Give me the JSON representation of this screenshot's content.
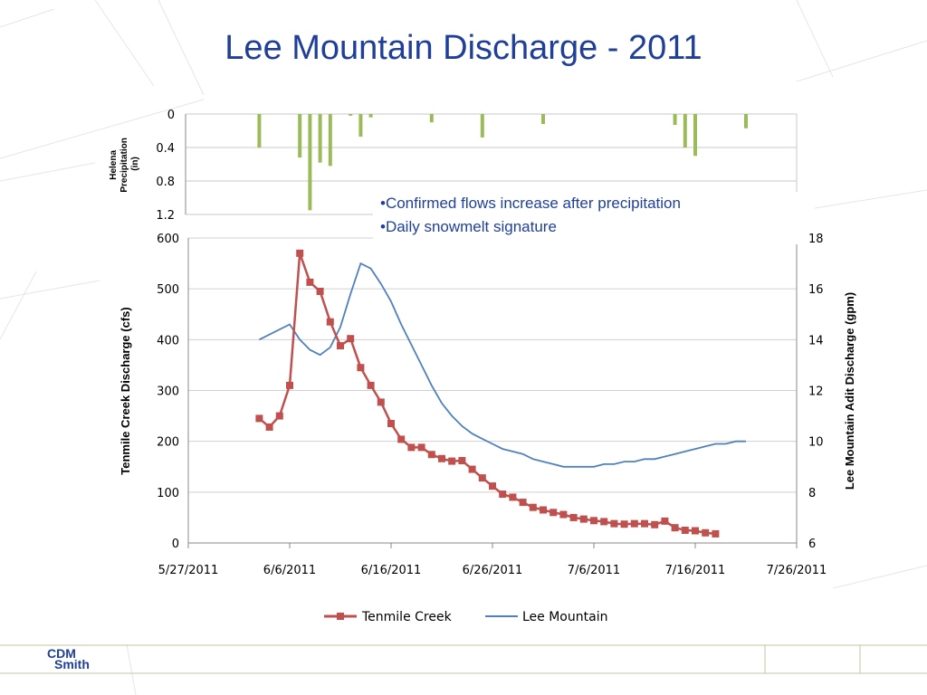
{
  "slide": {
    "title": "Lee Mountain Discharge - 2011",
    "bullets": [
      "•Confirmed flows increase after precipitation",
      "•Daily snowmelt signature"
    ],
    "logo": [
      "CDM",
      "Smith"
    ],
    "colors": {
      "title": "#1f3f99",
      "tenmile": "#c0504d",
      "lee": "#4f81bd",
      "precip": "#9bbb59",
      "footer_line": "#c5c5a0"
    }
  },
  "chart_data": [
    {
      "type": "bar",
      "ylabel": "Helena Precipitation (in)",
      "y_ticks": [
        "0",
        "0.4",
        "0.8",
        "1.2"
      ],
      "ylim": [
        0,
        1.2
      ],
      "y_inverted": true,
      "x_date_range": [
        "5/27/2011",
        "7/26/2011"
      ],
      "series": [
        {
          "values": [
            {
              "x": "6/3/2011",
              "y": 0.4
            },
            {
              "x": "6/7/2011",
              "y": 0.52
            },
            {
              "x": "6/8/2011",
              "y": 1.15
            },
            {
              "x": "6/9/2011",
              "y": 0.58
            },
            {
              "x": "6/10/2011",
              "y": 0.62
            },
            {
              "x": "6/12/2011",
              "y": 0.02
            },
            {
              "x": "6/13/2011",
              "y": 0.27
            },
            {
              "x": "6/14/2011",
              "y": 0.04
            },
            {
              "x": "6/20/2011",
              "y": 0.1
            },
            {
              "x": "6/25/2011",
              "y": 0.28
            },
            {
              "x": "7/1/2011",
              "y": 0.12
            },
            {
              "x": "7/14/2011",
              "y": 0.13
            },
            {
              "x": "7/15/2011",
              "y": 0.4
            },
            {
              "x": "7/16/2011",
              "y": 0.5
            },
            {
              "x": "7/21/2011",
              "y": 0.17
            }
          ]
        }
      ]
    },
    {
      "type": "line",
      "xlabel": "",
      "ylabel": "Tenmile Creek Discharge (cfs)",
      "y2label": "Lee Mountain Adit Discharge (gpm)",
      "x_ticks": [
        "5/27/2011",
        "6/6/2011",
        "6/16/2011",
        "6/26/2011",
        "7/6/2011",
        "7/16/2011",
        "7/26/2011"
      ],
      "y_ticks": [
        "0",
        "100",
        "200",
        "300",
        "400",
        "500",
        "600"
      ],
      "y2_ticks": [
        "6",
        "8",
        "10",
        "12",
        "14",
        "16",
        "18"
      ],
      "ylim": [
        0,
        600
      ],
      "y2lim": [
        6,
        18
      ],
      "grid": true,
      "legend": "bottom",
      "series": [
        {
          "name": "Tenmile Creek",
          "axis": "left",
          "marker": "square",
          "values": [
            {
              "x": "6/3/2011",
              "y": 245
            },
            {
              "x": "6/4/2011",
              "y": 228
            },
            {
              "x": "6/5/2011",
              "y": 250
            },
            {
              "x": "6/6/2011",
              "y": 310
            },
            {
              "x": "6/7/2011",
              "y": 570
            },
            {
              "x": "6/8/2011",
              "y": 513
            },
            {
              "x": "6/9/2011",
              "y": 495
            },
            {
              "x": "6/10/2011",
              "y": 435
            },
            {
              "x": "6/11/2011",
              "y": 388
            },
            {
              "x": "6/12/2011",
              "y": 402
            },
            {
              "x": "6/13/2011",
              "y": 345
            },
            {
              "x": "6/14/2011",
              "y": 310
            },
            {
              "x": "6/15/2011",
              "y": 277
            },
            {
              "x": "6/16/2011",
              "y": 235
            },
            {
              "x": "6/17/2011",
              "y": 204
            },
            {
              "x": "6/18/2011",
              "y": 188
            },
            {
              "x": "6/19/2011",
              "y": 188
            },
            {
              "x": "6/20/2011",
              "y": 174
            },
            {
              "x": "6/21/2011",
              "y": 166
            },
            {
              "x": "6/22/2011",
              "y": 161
            },
            {
              "x": "6/23/2011",
              "y": 162
            },
            {
              "x": "6/24/2011",
              "y": 145
            },
            {
              "x": "6/25/2011",
              "y": 128
            },
            {
              "x": "6/26/2011",
              "y": 112
            },
            {
              "x": "6/27/2011",
              "y": 96
            },
            {
              "x": "6/28/2011",
              "y": 90
            },
            {
              "x": "6/29/2011",
              "y": 80
            },
            {
              "x": "6/30/2011",
              "y": 70
            },
            {
              "x": "7/1/2011",
              "y": 65
            },
            {
              "x": "7/2/2011",
              "y": 60
            },
            {
              "x": "7/3/2011",
              "y": 56
            },
            {
              "x": "7/4/2011",
              "y": 50
            },
            {
              "x": "7/5/2011",
              "y": 47
            },
            {
              "x": "7/6/2011",
              "y": 44
            },
            {
              "x": "7/7/2011",
              "y": 42
            },
            {
              "x": "7/8/2011",
              "y": 38
            },
            {
              "x": "7/9/2011",
              "y": 37
            },
            {
              "x": "7/10/2011",
              "y": 38
            },
            {
              "x": "7/11/2011",
              "y": 38
            },
            {
              "x": "7/12/2011",
              "y": 36
            },
            {
              "x": "7/13/2011",
              "y": 43
            },
            {
              "x": "7/14/2011",
              "y": 30
            },
            {
              "x": "7/15/2011",
              "y": 25
            },
            {
              "x": "7/16/2011",
              "y": 24
            },
            {
              "x": "7/17/2011",
              "y": 20
            },
            {
              "x": "7/18/2011",
              "y": 18
            }
          ]
        },
        {
          "name": "Lee Mountain",
          "axis": "right",
          "values": [
            {
              "x": "6/3/2011",
              "y": 14.0
            },
            {
              "x": "6/4/2011",
              "y": 14.2
            },
            {
              "x": "6/5/2011",
              "y": 14.4
            },
            {
              "x": "6/6/2011",
              "y": 14.6
            },
            {
              "x": "6/7/2011",
              "y": 14.0
            },
            {
              "x": "6/8/2011",
              "y": 13.6
            },
            {
              "x": "6/9/2011",
              "y": 13.4
            },
            {
              "x": "6/10/2011",
              "y": 13.7
            },
            {
              "x": "6/11/2011",
              "y": 14.5
            },
            {
              "x": "6/12/2011",
              "y": 15.8
            },
            {
              "x": "6/13/2011",
              "y": 17.0
            },
            {
              "x": "6/14/2011",
              "y": 16.8
            },
            {
              "x": "6/15/2011",
              "y": 16.2
            },
            {
              "x": "6/16/2011",
              "y": 15.5
            },
            {
              "x": "6/17/2011",
              "y": 14.6
            },
            {
              "x": "6/18/2011",
              "y": 13.8
            },
            {
              "x": "6/19/2011",
              "y": 13.0
            },
            {
              "x": "6/20/2011",
              "y": 12.2
            },
            {
              "x": "6/21/2011",
              "y": 11.5
            },
            {
              "x": "6/22/2011",
              "y": 11.0
            },
            {
              "x": "6/23/2011",
              "y": 10.6
            },
            {
              "x": "6/24/2011",
              "y": 10.3
            },
            {
              "x": "6/25/2011",
              "y": 10.1
            },
            {
              "x": "6/26/2011",
              "y": 9.9
            },
            {
              "x": "6/27/2011",
              "y": 9.7
            },
            {
              "x": "6/28/2011",
              "y": 9.6
            },
            {
              "x": "6/29/2011",
              "y": 9.5
            },
            {
              "x": "6/30/2011",
              "y": 9.3
            },
            {
              "x": "7/1/2011",
              "y": 9.2
            },
            {
              "x": "7/2/2011",
              "y": 9.1
            },
            {
              "x": "7/3/2011",
              "y": 9.0
            },
            {
              "x": "7/4/2011",
              "y": 9.0
            },
            {
              "x": "7/5/2011",
              "y": 9.0
            },
            {
              "x": "7/6/2011",
              "y": 9.0
            },
            {
              "x": "7/7/2011",
              "y": 9.1
            },
            {
              "x": "7/8/2011",
              "y": 9.1
            },
            {
              "x": "7/9/2011",
              "y": 9.2
            },
            {
              "x": "7/10/2011",
              "y": 9.2
            },
            {
              "x": "7/11/2011",
              "y": 9.3
            },
            {
              "x": "7/12/2011",
              "y": 9.3
            },
            {
              "x": "7/13/2011",
              "y": 9.4
            },
            {
              "x": "7/14/2011",
              "y": 9.5
            },
            {
              "x": "7/15/2011",
              "y": 9.6
            },
            {
              "x": "7/16/2011",
              "y": 9.7
            },
            {
              "x": "7/17/2011",
              "y": 9.8
            },
            {
              "x": "7/18/2011",
              "y": 9.9
            },
            {
              "x": "7/19/2011",
              "y": 9.9
            },
            {
              "x": "7/20/2011",
              "y": 10.0
            },
            {
              "x": "7/21/2011",
              "y": 10.0
            }
          ]
        }
      ]
    }
  ]
}
